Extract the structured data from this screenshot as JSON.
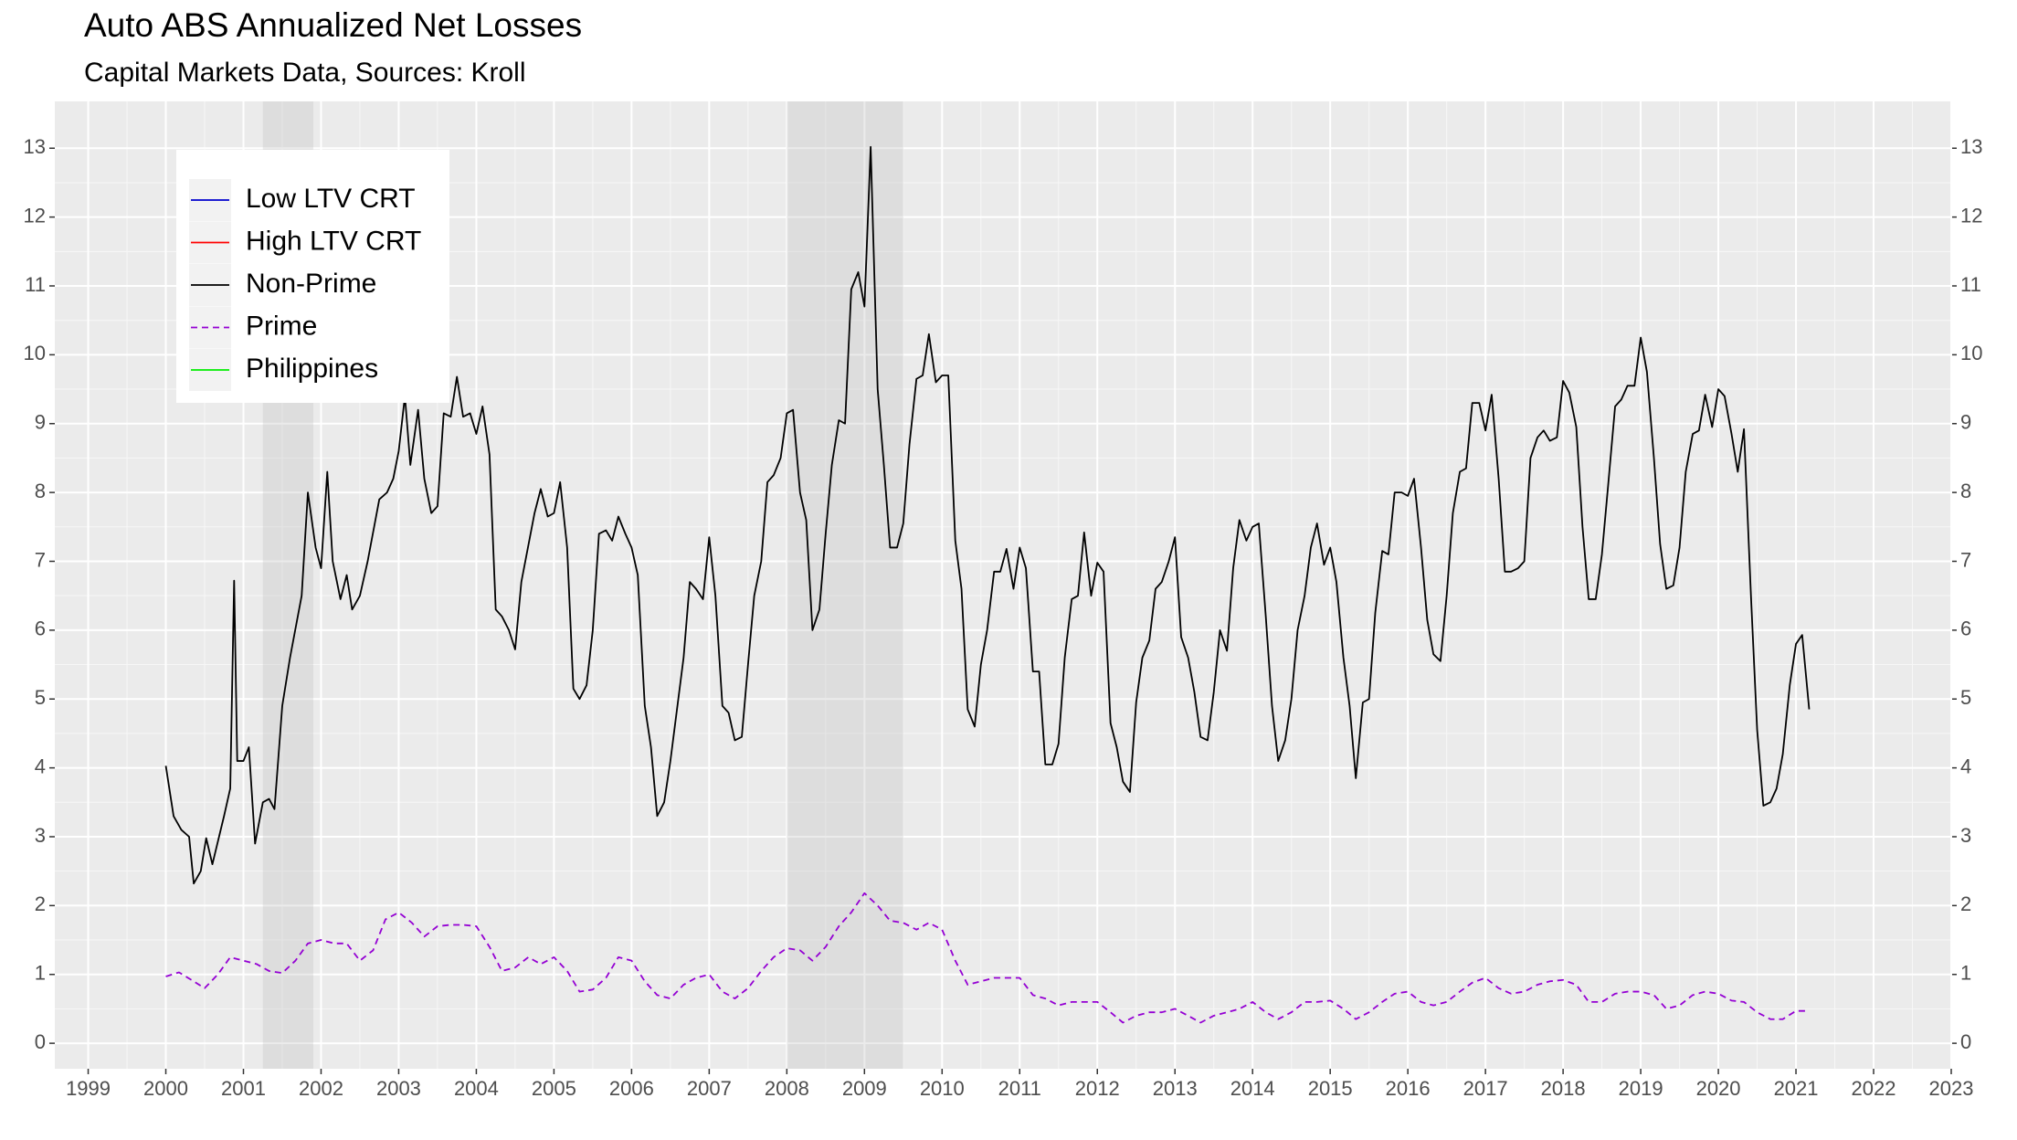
{
  "chart_data": {
    "type": "line",
    "title": "Auto ABS Annualized Net Losses",
    "subtitle": "Capital Markets Data, Sources: Kroll",
    "xlim": [
      1998.57,
      2023
    ],
    "xticks": [
      1999,
      2000,
      2001,
      2002,
      2003,
      2004,
      2005,
      2006,
      2007,
      2008,
      2009,
      2010,
      2011,
      2012,
      2013,
      2014,
      2015,
      2016,
      2017,
      2018,
      2019,
      2020,
      2021,
      2022,
      2023
    ],
    "ylim": [
      -0.37,
      13.68
    ],
    "yticks": [
      0,
      1,
      2,
      3,
      4,
      5,
      6,
      7,
      8,
      9,
      10,
      11,
      12,
      13
    ],
    "grid": true,
    "legend": "top-left",
    "shaded_periods": [
      [
        2001.25,
        2001.9
      ],
      [
        2008.0,
        2009.5
      ]
    ],
    "series": [
      {
        "name": "Low LTV CRT",
        "color": "#0000cd",
        "x": [],
        "values": []
      },
      {
        "name": "High LTV CRT",
        "color": "#ff0000",
        "x": [],
        "values": []
      },
      {
        "name": "Non-Prime",
        "color": "#000000",
        "x": [
          2000.0,
          2000.1,
          2000.2,
          2000.3,
          2000.36,
          2000.45,
          2000.52,
          2000.6,
          2000.75,
          2000.83,
          2000.88,
          2000.92,
          2001.0,
          2001.07,
          2001.15,
          2001.25,
          2001.33,
          2001.4,
          2001.5,
          2001.6,
          2001.75,
          2001.83,
          2001.93,
          2002.0,
          2002.08,
          2002.15,
          2002.25,
          2002.33,
          2002.4,
          2002.5,
          2002.6,
          2002.75,
          2002.85,
          2002.93,
          2003.0,
          2003.08,
          2003.15,
          2003.25,
          2003.33,
          2003.42,
          2003.5,
          2003.58,
          2003.67,
          2003.75,
          2003.83,
          2003.92,
          2004.0,
          2004.08,
          2004.17,
          2004.25,
          2004.33,
          2004.42,
          2004.5,
          2004.58,
          2004.75,
          2004.83,
          2004.92,
          2005.0,
          2005.08,
          2005.17,
          2005.25,
          2005.33,
          2005.42,
          2005.5,
          2005.58,
          2005.67,
          2005.75,
          2005.83,
          2005.92,
          2006.0,
          2006.08,
          2006.17,
          2006.25,
          2006.33,
          2006.42,
          2006.5,
          2006.67,
          2006.75,
          2006.83,
          2006.92,
          2007.0,
          2007.08,
          2007.17,
          2007.25,
          2007.33,
          2007.42,
          2007.5,
          2007.58,
          2007.67,
          2007.75,
          2007.83,
          2007.92,
          2008.0,
          2008.08,
          2008.17,
          2008.25,
          2008.33,
          2008.42,
          2008.5,
          2008.58,
          2008.67,
          2008.75,
          2008.83,
          2008.92,
          2009.0,
          2009.08,
          2009.17,
          2009.25,
          2009.33,
          2009.42,
          2009.5,
          2009.58,
          2009.67,
          2009.75,
          2009.83,
          2009.92,
          2010.0,
          2010.08,
          2010.17,
          2010.25,
          2010.33,
          2010.42,
          2010.5,
          2010.58,
          2010.67,
          2010.75,
          2010.83,
          2010.92,
          2011.0,
          2011.08,
          2011.17,
          2011.25,
          2011.33,
          2011.42,
          2011.5,
          2011.58,
          2011.67,
          2011.75,
          2011.83,
          2011.92,
          2012.0,
          2012.08,
          2012.17,
          2012.25,
          2012.33,
          2012.42,
          2012.5,
          2012.58,
          2012.67,
          2012.75,
          2012.83,
          2012.92,
          2013.0,
          2013.08,
          2013.17,
          2013.25,
          2013.33,
          2013.42,
          2013.5,
          2013.58,
          2013.67,
          2013.75,
          2013.83,
          2013.92,
          2014.0,
          2014.08,
          2014.17,
          2014.25,
          2014.33,
          2014.42,
          2014.5,
          2014.58,
          2014.67,
          2014.75,
          2014.83,
          2014.92,
          2015.0,
          2015.08,
          2015.17,
          2015.25,
          2015.33,
          2015.42,
          2015.5,
          2015.58,
          2015.67,
          2015.75,
          2015.83,
          2015.92,
          2016.0,
          2016.08,
          2016.17,
          2016.25,
          2016.33,
          2016.42,
          2016.5,
          2016.58,
          2016.67,
          2016.75,
          2016.83,
          2016.92,
          2017.0,
          2017.08,
          2017.17,
          2017.25,
          2017.33,
          2017.42,
          2017.5,
          2017.58,
          2017.67,
          2017.75,
          2017.83,
          2017.92,
          2018.0,
          2018.08,
          2018.17,
          2018.25,
          2018.33,
          2018.42,
          2018.5,
          2018.58,
          2018.67,
          2018.75,
          2018.83,
          2018.92,
          2019.0,
          2019.08,
          2019.17,
          2019.25,
          2019.33,
          2019.42,
          2019.5,
          2019.58,
          2019.67,
          2019.75,
          2019.83,
          2019.92,
          2020.0,
          2020.08,
          2020.17,
          2020.25,
          2020.33,
          2020.42,
          2020.5,
          2020.58,
          2020.67,
          2020.75,
          2020.83,
          2020.92,
          2021.0,
          2021.08,
          2021.17
        ],
        "values": [
          4.03,
          3.3,
          3.1,
          3.0,
          2.32,
          2.5,
          2.98,
          2.6,
          3.3,
          3.7,
          6.72,
          4.1,
          4.1,
          4.3,
          2.9,
          3.5,
          3.55,
          3.4,
          4.9,
          5.6,
          6.5,
          8.0,
          7.2,
          6.9,
          8.3,
          7.0,
          6.45,
          6.8,
          6.3,
          6.5,
          7.0,
          7.9,
          8.0,
          8.2,
          8.6,
          9.4,
          8.4,
          9.2,
          8.2,
          7.7,
          7.8,
          9.15,
          9.1,
          9.68,
          9.1,
          9.15,
          8.85,
          9.25,
          8.55,
          6.3,
          6.2,
          6.0,
          5.72,
          6.7,
          7.7,
          8.05,
          7.65,
          7.7,
          8.15,
          7.2,
          5.15,
          5.0,
          5.2,
          6.0,
          7.4,
          7.45,
          7.3,
          7.65,
          7.4,
          7.2,
          6.8,
          4.9,
          4.3,
          3.3,
          3.5,
          4.1,
          5.6,
          6.7,
          6.6,
          6.45,
          7.35,
          6.5,
          4.9,
          4.8,
          4.4,
          4.45,
          5.5,
          6.5,
          7.0,
          8.15,
          8.25,
          8.5,
          9.15,
          9.2,
          8.0,
          7.6,
          6.0,
          6.3,
          7.4,
          8.4,
          9.05,
          9.0,
          10.95,
          11.2,
          10.7,
          13.02,
          9.5,
          8.4,
          7.2,
          7.2,
          7.55,
          8.7,
          9.65,
          9.7,
          10.3,
          9.6,
          9.7,
          9.7,
          7.3,
          6.6,
          4.85,
          4.6,
          5.5,
          6.0,
          6.85,
          6.85,
          7.18,
          6.6,
          7.2,
          6.9,
          5.4,
          5.4,
          4.05,
          4.05,
          4.35,
          5.6,
          6.45,
          6.5,
          7.42,
          6.5,
          6.98,
          6.85,
          4.65,
          4.3,
          3.8,
          3.65,
          4.95,
          5.6,
          5.85,
          6.6,
          6.7,
          7.0,
          7.35,
          5.9,
          5.6,
          5.1,
          4.45,
          4.4,
          5.1,
          6.0,
          5.7,
          6.9,
          7.6,
          7.3,
          7.5,
          7.55,
          6.2,
          4.9,
          4.1,
          4.4,
          5.0,
          6.0,
          6.5,
          7.2,
          7.55,
          6.95,
          7.2,
          6.7,
          5.6,
          4.9,
          3.85,
          4.95,
          5.0,
          6.25,
          7.15,
          7.1,
          8.0,
          8.0,
          7.95,
          8.2,
          7.2,
          6.15,
          5.65,
          5.55,
          6.5,
          7.7,
          8.3,
          8.35,
          9.3,
          9.3,
          8.9,
          9.42,
          8.2,
          6.85,
          6.85,
          6.9,
          7.0,
          8.5,
          8.8,
          8.9,
          8.75,
          8.8,
          9.62,
          9.45,
          8.95,
          7.5,
          6.45,
          6.45,
          7.1,
          8.1,
          9.25,
          9.35,
          9.55,
          9.55,
          10.25,
          9.75,
          8.5,
          7.25,
          6.6,
          6.65,
          7.2,
          8.3,
          8.85,
          8.9,
          9.42,
          8.95,
          9.5,
          9.4,
          8.85,
          8.3,
          8.92,
          6.5,
          4.55,
          3.45,
          3.5,
          3.7,
          4.2,
          5.2,
          5.8,
          5.93,
          4.85
        ]
      },
      {
        "name": "Prime",
        "color": "#9400d3",
        "dash": "dashed",
        "x": [
          2000.0,
          2000.17,
          2000.33,
          2000.5,
          2000.67,
          2000.83,
          2001.0,
          2001.17,
          2001.33,
          2001.5,
          2001.67,
          2001.83,
          2002.0,
          2002.17,
          2002.33,
          2002.5,
          2002.67,
          2002.83,
          2003.0,
          2003.17,
          2003.33,
          2003.5,
          2003.67,
          2003.83,
          2004.0,
          2004.17,
          2004.33,
          2004.5,
          2004.67,
          2004.83,
          2005.0,
          2005.17,
          2005.33,
          2005.5,
          2005.67,
          2005.83,
          2006.0,
          2006.17,
          2006.33,
          2006.5,
          2006.67,
          2006.83,
          2007.0,
          2007.17,
          2007.33,
          2007.5,
          2007.67,
          2007.83,
          2008.0,
          2008.17,
          2008.33,
          2008.5,
          2008.67,
          2008.83,
          2009.0,
          2009.17,
          2009.33,
          2009.5,
          2009.67,
          2009.83,
          2010.0,
          2010.17,
          2010.33,
          2010.5,
          2010.67,
          2010.83,
          2011.0,
          2011.17,
          2011.33,
          2011.5,
          2011.67,
          2011.83,
          2012.0,
          2012.17,
          2012.33,
          2012.5,
          2012.67,
          2012.83,
          2013.0,
          2013.17,
          2013.33,
          2013.5,
          2013.67,
          2013.83,
          2014.0,
          2014.17,
          2014.33,
          2014.5,
          2014.67,
          2014.83,
          2015.0,
          2015.17,
          2015.33,
          2015.5,
          2015.67,
          2015.83,
          2016.0,
          2016.17,
          2016.33,
          2016.5,
          2016.67,
          2016.83,
          2017.0,
          2017.17,
          2017.33,
          2017.5,
          2017.67,
          2017.83,
          2018.0,
          2018.17,
          2018.33,
          2018.5,
          2018.67,
          2018.83,
          2019.0,
          2019.17,
          2019.33,
          2019.5,
          2019.67,
          2019.83,
          2020.0,
          2020.17,
          2020.33,
          2020.5,
          2020.67,
          2020.83,
          2021.0,
          2021.17
        ],
        "values": [
          0.97,
          1.03,
          0.92,
          0.8,
          1.0,
          1.25,
          1.2,
          1.15,
          1.05,
          1.02,
          1.2,
          1.45,
          1.5,
          1.45,
          1.45,
          1.2,
          1.35,
          1.8,
          1.9,
          1.75,
          1.55,
          1.7,
          1.72,
          1.72,
          1.7,
          1.4,
          1.05,
          1.1,
          1.25,
          1.15,
          1.25,
          1.05,
          0.75,
          0.78,
          0.95,
          1.25,
          1.2,
          0.9,
          0.7,
          0.65,
          0.85,
          0.95,
          1.0,
          0.75,
          0.65,
          0.8,
          1.05,
          1.25,
          1.38,
          1.35,
          1.2,
          1.4,
          1.7,
          1.9,
          2.18,
          2.0,
          1.78,
          1.75,
          1.65,
          1.75,
          1.65,
          1.2,
          0.85,
          0.9,
          0.95,
          0.95,
          0.95,
          0.7,
          0.65,
          0.55,
          0.6,
          0.6,
          0.6,
          0.45,
          0.3,
          0.4,
          0.45,
          0.45,
          0.5,
          0.4,
          0.3,
          0.4,
          0.45,
          0.5,
          0.6,
          0.45,
          0.35,
          0.45,
          0.6,
          0.6,
          0.62,
          0.5,
          0.35,
          0.45,
          0.6,
          0.72,
          0.75,
          0.6,
          0.55,
          0.6,
          0.75,
          0.88,
          0.95,
          0.8,
          0.72,
          0.75,
          0.85,
          0.9,
          0.92,
          0.85,
          0.6,
          0.6,
          0.72,
          0.75,
          0.75,
          0.7,
          0.5,
          0.55,
          0.7,
          0.75,
          0.72,
          0.62,
          0.6,
          0.45,
          0.35,
          0.35,
          0.47,
          0.47
        ]
      },
      {
        "name": "Philippines",
        "color": "#00ee00",
        "x": [],
        "values": []
      }
    ]
  }
}
